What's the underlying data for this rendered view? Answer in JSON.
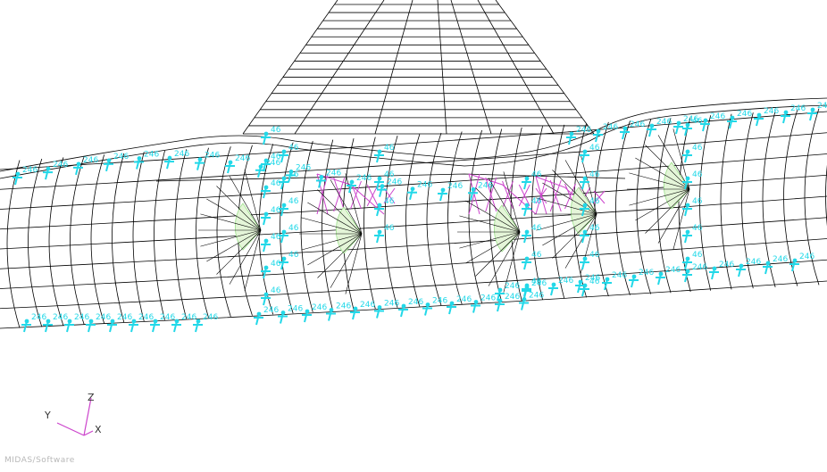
{
  "viewport": {
    "constraint_label": "246",
    "constraint_label_short": "46"
  },
  "triad": {
    "z": "Z",
    "y": "Y",
    "x": "X"
  },
  "logo": {
    "text": "MIDAS/Software"
  },
  "colors": {
    "mesh": "#000000",
    "constraint": "#22d8e8",
    "tendon": "#cc44cc",
    "anchor": "#9be08a",
    "triad_z": "#cc44cc",
    "triad_x": "#cc44cc"
  }
}
